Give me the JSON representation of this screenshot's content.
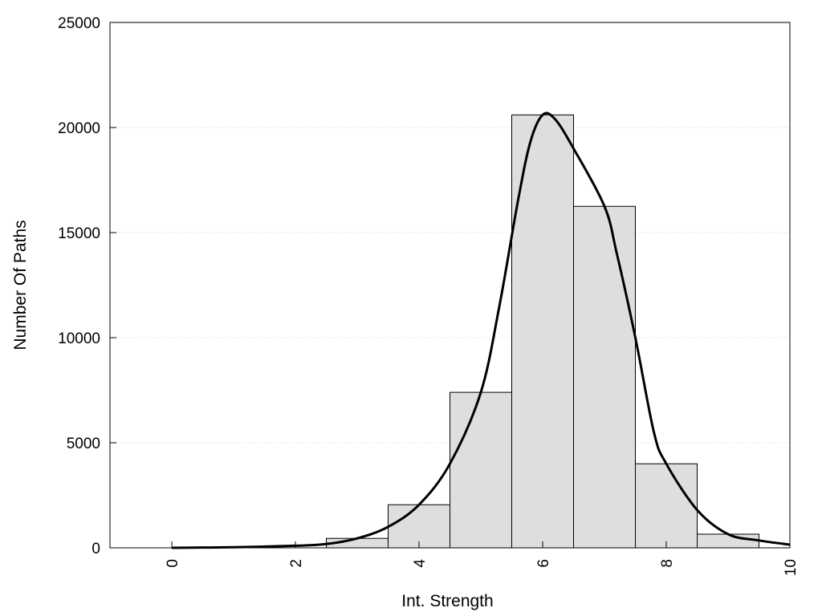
{
  "chart_data": {
    "type": "bar",
    "title": "",
    "xlabel": "Int. Strength",
    "ylabel": "Number Of Paths",
    "xlim": [
      -1,
      10
    ],
    "ylim": [
      0,
      25000
    ],
    "xticks": [
      0,
      2,
      4,
      6,
      8,
      10
    ],
    "yticks": [
      0,
      5000,
      10000,
      15000,
      20000,
      25000
    ],
    "grid": "horizontal dotted",
    "bar_width": 1,
    "bars": [
      {
        "x": 0,
        "value": 0
      },
      {
        "x": 1,
        "value": 0
      },
      {
        "x": 2,
        "value": 0
      },
      {
        "x": 3,
        "value": 450
      },
      {
        "x": 4,
        "value": 2050
      },
      {
        "x": 5,
        "value": 7400
      },
      {
        "x": 6,
        "value": 20600
      },
      {
        "x": 7,
        "value": 16250
      },
      {
        "x": 8,
        "value": 4000
      },
      {
        "x": 9,
        "value": 650
      }
    ],
    "curve": [
      {
        "x": 0,
        "y": 0
      },
      {
        "x": 1,
        "y": 30
      },
      {
        "x": 2,
        "y": 100
      },
      {
        "x": 2.5,
        "y": 180
      },
      {
        "x": 3,
        "y": 450
      },
      {
        "x": 3.5,
        "y": 1000
      },
      {
        "x": 4,
        "y": 2050
      },
      {
        "x": 4.5,
        "y": 4000
      },
      {
        "x": 5,
        "y": 7400
      },
      {
        "x": 5.3,
        "y": 11500
      },
      {
        "x": 5.6,
        "y": 16500
      },
      {
        "x": 5.8,
        "y": 19300
      },
      {
        "x": 6,
        "y": 20600
      },
      {
        "x": 6.2,
        "y": 20400
      },
      {
        "x": 6.5,
        "y": 19000
      },
      {
        "x": 7,
        "y": 16250
      },
      {
        "x": 7.2,
        "y": 14000
      },
      {
        "x": 7.5,
        "y": 10000
      },
      {
        "x": 7.8,
        "y": 5500
      },
      {
        "x": 8,
        "y": 4000
      },
      {
        "x": 8.5,
        "y": 1800
      },
      {
        "x": 9,
        "y": 650
      },
      {
        "x": 9.5,
        "y": 350
      },
      {
        "x": 10,
        "y": 150
      }
    ],
    "colors": {
      "bar_fill": "#dedede",
      "stroke": "#000000",
      "grid": "#c8c8c8"
    }
  }
}
